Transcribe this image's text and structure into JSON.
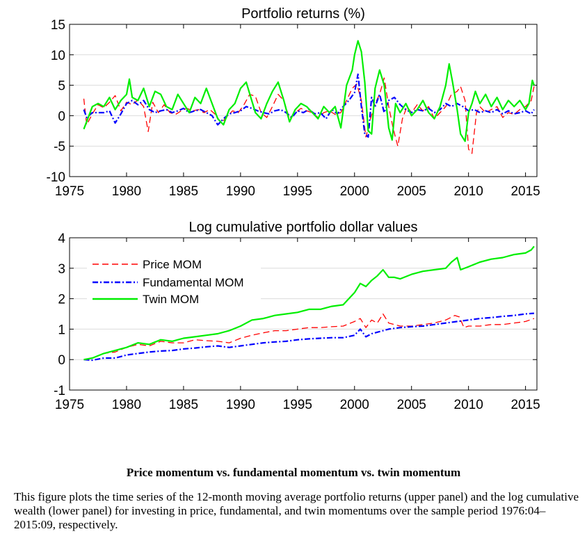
{
  "chart_data": [
    {
      "type": "line",
      "title": "Portfolio returns (%)",
      "xlim": [
        1975,
        2016
      ],
      "ylim": [
        -10,
        15
      ],
      "xticks": [
        "1975",
        "1980",
        "1985",
        "1990",
        "1995",
        "2000",
        "2005",
        "2010",
        "2015"
      ],
      "yticks": [
        "-10",
        "-5",
        "0",
        "5",
        "10",
        "15"
      ],
      "grid": "horizontal",
      "series": [
        {
          "name": "Price MOM",
          "color": "#ff0000",
          "style": "dashed",
          "x": [
            1976.25,
            1976.5,
            1977,
            1977.5,
            1978,
            1978.5,
            1979,
            1979.5,
            1980,
            1980.5,
            1981,
            1981.5,
            1981.9,
            1982.3,
            1982.8,
            1983.3,
            1983.8,
            1984.3,
            1984.8,
            1985.3,
            1985.8,
            1986.3,
            1986.8,
            1987.3,
            1987.8,
            1988.3,
            1988.8,
            1989.3,
            1989.8,
            1990.3,
            1990.8,
            1991.3,
            1991.8,
            1992.3,
            1992.8,
            1993.3,
            1993.8,
            1994.3,
            1994.8,
            1995.3,
            1995.8,
            1996.3,
            1996.8,
            1997.3,
            1997.8,
            1998.3,
            1998.8,
            1999.3,
            1999.8,
            2000.2,
            2000.6,
            2001,
            2001.4,
            2001.8,
            2002.2,
            2002.6,
            2003,
            2003.4,
            2003.8,
            2004.2,
            2004.6,
            2005,
            2005.5,
            2006,
            2006.5,
            2007,
            2007.5,
            2008,
            2008.5,
            2009,
            2009.3,
            2009.7,
            2010,
            2010.3,
            2010.7,
            2011,
            2011.5,
            2012,
            2012.5,
            2013,
            2013.5,
            2014,
            2014.5,
            2015,
            2015.5,
            2015.75
          ],
          "values": [
            2.8,
            -1.5,
            0.3,
            1.8,
            1.3,
            2.2,
            3.3,
            0.8,
            2.2,
            1.8,
            2.6,
            1.5,
            -2.6,
            2.2,
            0.5,
            1.8,
            0.5,
            0.2,
            0.8,
            1.2,
            0.8,
            1.0,
            0.5,
            1.0,
            0.2,
            -1.2,
            -0.2,
            0.8,
            0.5,
            1.8,
            3.5,
            3.2,
            0.5,
            -0.3,
            1.5,
            3.5,
            2.5,
            -0.5,
            0.5,
            1.2,
            0.8,
            0.5,
            -0.3,
            0.5,
            0.8,
            0.2,
            0.5,
            2.5,
            4.5,
            5.2,
            2.5,
            -3.5,
            -0.5,
            2.0,
            3.5,
            6.2,
            1.5,
            -2.2,
            -5.0,
            -0.5,
            1.5,
            0.5,
            1.8,
            0.8,
            1.5,
            -0.5,
            0.5,
            1.5,
            3.5,
            4.0,
            4.8,
            2.5,
            -5.5,
            -6.2,
            0.5,
            1.5,
            0.5,
            1.0,
            1.5,
            -0.3,
            0.5,
            0.2,
            1.0,
            1.5,
            2.5,
            4.8
          ]
        },
        {
          "name": "Fundamental MOM",
          "color": "#0000ff",
          "style": "dashdot",
          "x": [
            1976.25,
            1976.5,
            1977,
            1977.5,
            1978,
            1978.5,
            1979,
            1979.5,
            1980,
            1980.5,
            1981,
            1981.5,
            1982,
            1982.5,
            1983,
            1983.5,
            1984,
            1984.5,
            1985,
            1985.5,
            1986,
            1986.5,
            1987,
            1987.5,
            1988,
            1988.5,
            1989,
            1989.5,
            1990,
            1990.5,
            1991,
            1991.5,
            1992,
            1992.5,
            1993,
            1993.5,
            1994,
            1994.5,
            1995,
            1995.5,
            1996,
            1996.5,
            1997,
            1997.5,
            1998,
            1998.5,
            1999,
            1999.5,
            2000,
            2000.3,
            2000.6,
            2000.9,
            2001.2,
            2001.5,
            2001.8,
            2002.2,
            2002.6,
            2003,
            2003.5,
            2004,
            2004.5,
            2005,
            2005.5,
            2006,
            2006.5,
            2007,
            2007.5,
            2008,
            2008.5,
            2009,
            2009.5,
            2010,
            2010.5,
            2011,
            2011.5,
            2012,
            2012.5,
            2013,
            2013.5,
            2014,
            2014.5,
            2015,
            2015.5,
            2015.75
          ],
          "values": [
            1.0,
            -0.3,
            0.5,
            0.5,
            0.5,
            0.8,
            -1.2,
            0.3,
            2.0,
            2.5,
            1.8,
            2.5,
            1.0,
            0.5,
            0.8,
            1.0,
            0.5,
            0.8,
            1.2,
            0.5,
            0.8,
            1.0,
            0.5,
            0.0,
            -1.5,
            -0.5,
            0.3,
            0.5,
            0.8,
            1.5,
            1.2,
            0.8,
            0.5,
            0.3,
            0.8,
            1.0,
            0.5,
            -0.3,
            0.8,
            0.5,
            1.0,
            0.3,
            0.5,
            -0.5,
            1.0,
            0.3,
            1.5,
            2.5,
            3.8,
            6.8,
            1.5,
            -3.0,
            -3.5,
            3.0,
            1.5,
            3.5,
            0.5,
            2.5,
            3.0,
            1.8,
            1.0,
            0.5,
            1.0,
            0.8,
            1.2,
            0.5,
            1.0,
            2.0,
            1.5,
            2.0,
            1.5,
            0.8,
            1.0,
            0.5,
            0.8,
            0.5,
            1.0,
            0.3,
            0.8,
            0.3,
            0.5,
            0.8,
            0.3,
            1.0
          ]
        },
        {
          "name": "Twin MOM",
          "color": "#00ee00",
          "style": "solid",
          "x": [
            1976.25,
            1976.6,
            1977,
            1977.5,
            1978,
            1978.5,
            1979,
            1979.5,
            1980,
            1980.25,
            1980.5,
            1981,
            1981.5,
            1982,
            1982.5,
            1983,
            1983.5,
            1984,
            1984.5,
            1985,
            1985.5,
            1986,
            1986.5,
            1987,
            1987.5,
            1988,
            1988.5,
            1989,
            1989.5,
            1990,
            1990.5,
            1990.9,
            1991.3,
            1991.8,
            1992.3,
            1992.8,
            1993.3,
            1993.8,
            1994.3,
            1994.8,
            1995.3,
            1995.8,
            1996.3,
            1996.8,
            1997.3,
            1997.8,
            1998.3,
            1998.8,
            1999.3,
            1999.8,
            2000,
            2000.3,
            2000.6,
            2000.9,
            2001.2,
            2001.5,
            2001.8,
            2002.2,
            2002.6,
            2003,
            2003.3,
            2003.6,
            2004,
            2004.5,
            2005,
            2005.5,
            2006,
            2006.5,
            2007,
            2007.5,
            2008,
            2008.3,
            2008.6,
            2009,
            2009.3,
            2009.7,
            2010,
            2010.3,
            2010.6,
            2011,
            2011.5,
            2012,
            2012.5,
            2013,
            2013.5,
            2014,
            2014.5,
            2015,
            2015.3,
            2015.6,
            2015.75
          ],
          "values": [
            -2.2,
            -0.5,
            1.5,
            2.0,
            1.5,
            3.0,
            1.0,
            2.5,
            3.5,
            6.0,
            3.0,
            2.5,
            4.5,
            1.5,
            4.0,
            3.5,
            1.5,
            1.0,
            3.5,
            2.0,
            0.5,
            3.0,
            2.0,
            4.5,
            2.0,
            -0.5,
            -1.5,
            1.0,
            2.0,
            4.5,
            5.5,
            3.0,
            0.5,
            -0.5,
            2.0,
            4.0,
            5.5,
            2.5,
            -1.0,
            1.0,
            2.0,
            1.5,
            0.5,
            -0.5,
            1.5,
            0.5,
            1.5,
            -2.0,
            5.0,
            7.5,
            10.0,
            12.3,
            10.5,
            5.5,
            -2.5,
            -3.0,
            4.5,
            7.5,
            5.0,
            -2.0,
            -4.0,
            2.0,
            0.5,
            2.0,
            0.0,
            1.0,
            2.5,
            0.5,
            -0.5,
            1.5,
            5.0,
            8.5,
            5.5,
            1.0,
            -3.0,
            -4.2,
            0.5,
            2.0,
            4.0,
            2.0,
            3.5,
            1.5,
            3.0,
            1.0,
            2.5,
            1.5,
            2.5,
            1.0,
            2.0,
            5.8,
            5.0
          ]
        }
      ]
    },
    {
      "type": "line",
      "title": "Log cumulative portfolio dollar values",
      "xlim": [
        1975,
        2016
      ],
      "ylim": [
        -1,
        4
      ],
      "xticks": [
        "1975",
        "1980",
        "1985",
        "1990",
        "1995",
        "2000",
        "2005",
        "2010",
        "2015"
      ],
      "yticks": [
        "-1",
        "0",
        "1",
        "2",
        "3",
        "4"
      ],
      "grid": "horizontal",
      "legend": "top-left",
      "series": [
        {
          "name": "Price MOM",
          "color": "#ff0000",
          "style": "dashed",
          "x": [
            1976.25,
            1977,
            1978,
            1979,
            1980,
            1981,
            1982,
            1983,
            1984,
            1985,
            1986,
            1987,
            1988,
            1989,
            1990,
            1991,
            1992,
            1993,
            1994,
            1995,
            1996,
            1997,
            1998,
            1999,
            2000,
            2000.5,
            2001,
            2001.5,
            2002,
            2002.5,
            2003,
            2003.5,
            2004,
            2005,
            2006,
            2007,
            2008,
            2008.8,
            2009.2,
            2009.6,
            2010,
            2011,
            2012,
            2013,
            2014,
            2015,
            2015.75
          ],
          "values": [
            0.0,
            0.05,
            0.2,
            0.25,
            0.4,
            0.5,
            0.45,
            0.6,
            0.55,
            0.55,
            0.65,
            0.62,
            0.6,
            0.55,
            0.7,
            0.8,
            0.88,
            0.95,
            0.95,
            1.0,
            1.05,
            1.05,
            1.08,
            1.1,
            1.25,
            1.35,
            1.05,
            1.3,
            1.2,
            1.5,
            1.2,
            1.15,
            1.1,
            1.1,
            1.15,
            1.2,
            1.3,
            1.45,
            1.4,
            1.05,
            1.1,
            1.1,
            1.15,
            1.15,
            1.2,
            1.25,
            1.35
          ]
        },
        {
          "name": "Fundamental MOM",
          "color": "#0000ff",
          "style": "dashdot",
          "x": [
            1976.25,
            1977,
            1978,
            1979,
            1980,
            1981,
            1982,
            1983,
            1984,
            1985,
            1986,
            1987,
            1988,
            1989,
            1990,
            1991,
            1992,
            1993,
            1994,
            1995,
            1996,
            1997,
            1998,
            1999,
            2000,
            2000.5,
            2001,
            2001.5,
            2002,
            2002.5,
            2003,
            2004,
            2005,
            2006,
            2007,
            2008,
            2009,
            2010,
            2011,
            2012,
            2013,
            2014,
            2015,
            2015.75
          ],
          "values": [
            0.0,
            -0.02,
            0.05,
            0.05,
            0.15,
            0.2,
            0.25,
            0.28,
            0.3,
            0.35,
            0.38,
            0.42,
            0.45,
            0.4,
            0.45,
            0.5,
            0.55,
            0.58,
            0.6,
            0.65,
            0.68,
            0.7,
            0.72,
            0.72,
            0.8,
            1.0,
            0.75,
            0.85,
            0.9,
            0.95,
            1.0,
            1.05,
            1.08,
            1.1,
            1.15,
            1.2,
            1.25,
            1.3,
            1.35,
            1.38,
            1.42,
            1.45,
            1.5,
            1.52
          ]
        },
        {
          "name": "Twin MOM",
          "color": "#00ee00",
          "style": "solid",
          "x": [
            1976.25,
            1977,
            1978,
            1979,
            1980,
            1981,
            1982,
            1983,
            1984,
            1985,
            1986,
            1987,
            1988,
            1989,
            1990,
            1991,
            1992,
            1993,
            1994,
            1995,
            1996,
            1997,
            1998,
            1999,
            2000,
            2000.5,
            2001,
            2001.5,
            2002,
            2002.5,
            2003,
            2003.5,
            2004,
            2005,
            2006,
            2007,
            2008,
            2008.5,
            2009,
            2009.3,
            2010,
            2011,
            2012,
            2013,
            2014,
            2015,
            2015.5,
            2015.75
          ],
          "values": [
            0.0,
            0.05,
            0.2,
            0.3,
            0.4,
            0.55,
            0.5,
            0.65,
            0.6,
            0.7,
            0.75,
            0.8,
            0.85,
            0.95,
            1.1,
            1.3,
            1.35,
            1.45,
            1.5,
            1.55,
            1.65,
            1.65,
            1.75,
            1.8,
            2.2,
            2.5,
            2.4,
            2.6,
            2.75,
            2.95,
            2.7,
            2.7,
            2.65,
            2.8,
            2.9,
            2.95,
            3.0,
            3.2,
            3.35,
            2.95,
            3.05,
            3.2,
            3.3,
            3.35,
            3.45,
            3.5,
            3.6,
            3.72
          ]
        }
      ]
    }
  ],
  "caption": {
    "title": "Price momentum vs. fundamental momentum vs. twin momentum",
    "text": "This figure plots the time series of the 12-month moving average portfolio returns (upper panel) and the log cumulative wealth (lower panel) for investing in price, fundamental, and twin momentums over the sample period 1976:04–2015:09, respectively."
  }
}
